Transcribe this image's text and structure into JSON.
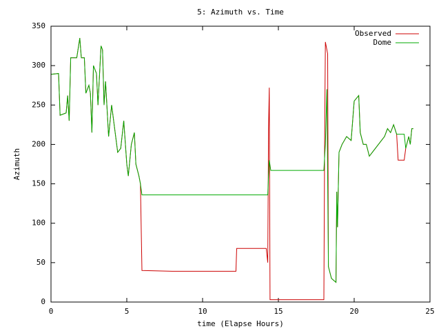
{
  "chart_data": {
    "type": "line",
    "title": "5: Azimuth vs. Time",
    "xlabel": "time (Elapse Hours)",
    "ylabel": "Azimuth",
    "xlim": [
      0,
      25
    ],
    "ylim": [
      0,
      350
    ],
    "xticks": [
      0,
      5,
      10,
      15,
      20,
      25
    ],
    "yticks": [
      0,
      50,
      100,
      150,
      200,
      250,
      300,
      350
    ],
    "grid": false,
    "legend": "top right",
    "series": [
      {
        "name": "Observed",
        "color": "#cc0000",
        "x": [
          0,
          0.5,
          0.6,
          1.0,
          1.1,
          1.2,
          1.3,
          1.4,
          1.7,
          1.9,
          2.0,
          2.2,
          2.3,
          2.5,
          2.6,
          2.7,
          2.8,
          3.0,
          3.1,
          3.3,
          3.4,
          3.5,
          3.6,
          3.8,
          4.0,
          4.2,
          4.4,
          4.6,
          4.8,
          5.0,
          5.1,
          5.3,
          5.5,
          5.6,
          5.8,
          5.9,
          6.0,
          8.0,
          12.2,
          12.25,
          14.2,
          14.3,
          14.35,
          14.4,
          14.45,
          18.0,
          18.05,
          18.1,
          18.25,
          18.3,
          18.5,
          18.8,
          18.85,
          18.9,
          19.0,
          19.2,
          19.5,
          19.8,
          20.0,
          20.3,
          20.4,
          20.6,
          20.8,
          21.0,
          21.2,
          21.8,
          22.0,
          22.2,
          22.4,
          22.6,
          22.8,
          22.9,
          23.3,
          23.4,
          23.6,
          23.7,
          23.8,
          23.9
        ],
        "values": [
          289,
          290,
          237,
          240,
          262,
          230,
          310,
          310,
          310,
          335,
          310,
          310,
          265,
          275,
          265,
          215,
          300,
          290,
          250,
          325,
          320,
          250,
          280,
          210,
          250,
          220,
          190,
          195,
          230,
          175,
          160,
          200,
          215,
          175,
          160,
          150,
          40,
          39,
          39,
          68,
          68,
          50,
          220,
          272,
          3,
          3,
          200,
          330,
          315,
          45,
          30,
          25,
          140,
          95,
          190,
          200,
          210,
          205,
          255,
          262,
          215,
          200,
          200,
          185,
          190,
          205,
          210,
          220,
          215,
          225,
          213,
          180,
          180,
          195,
          210,
          200,
          220,
          220
        ]
      },
      {
        "name": "Dome",
        "color": "#00aa00",
        "x": [
          0,
          0.5,
          0.6,
          1.0,
          1.1,
          1.2,
          1.3,
          1.4,
          1.7,
          1.9,
          2.0,
          2.2,
          2.3,
          2.5,
          2.6,
          2.7,
          2.8,
          3.0,
          3.1,
          3.3,
          3.4,
          3.5,
          3.6,
          3.8,
          4.0,
          4.2,
          4.4,
          4.6,
          4.8,
          5.0,
          5.1,
          5.3,
          5.5,
          5.6,
          5.8,
          5.9,
          6.0,
          14.3,
          14.35,
          14.4,
          14.5,
          18.0,
          18.1,
          18.2,
          18.3,
          18.5,
          18.8,
          18.85,
          18.9,
          19.0,
          19.2,
          19.5,
          19.8,
          20.0,
          20.3,
          20.4,
          20.6,
          20.8,
          21.0,
          21.2,
          21.8,
          22.0,
          22.2,
          22.4,
          22.6,
          22.8,
          23.3,
          23.4,
          23.6,
          23.7,
          23.8,
          23.9
        ],
        "values": [
          289,
          290,
          237,
          240,
          262,
          230,
          310,
          310,
          310,
          335,
          310,
          310,
          265,
          275,
          265,
          215,
          300,
          290,
          250,
          325,
          320,
          250,
          280,
          210,
          250,
          220,
          190,
          195,
          230,
          175,
          160,
          200,
          215,
          175,
          160,
          150,
          136,
          136,
          160,
          180,
          167,
          167,
          200,
          270,
          45,
          30,
          25,
          140,
          95,
          190,
          200,
          210,
          205,
          255,
          262,
          215,
          200,
          200,
          185,
          190,
          205,
          210,
          220,
          215,
          225,
          213,
          213,
          195,
          210,
          200,
          220,
          220
        ]
      }
    ]
  }
}
